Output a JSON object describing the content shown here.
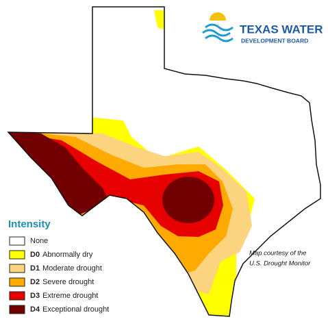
{
  "logo": {
    "title": "TEXAS WATER",
    "subtitle": "DEVELOPMENT BOARD"
  },
  "legend": {
    "title": "Intensity",
    "items": [
      {
        "label": "None",
        "color": "#ffffff"
      },
      {
        "code": "D0",
        "label": "Abnormally dry",
        "color": "#ffff00"
      },
      {
        "code": "D1",
        "label": "Moderate drought",
        "color": "#fcd37f"
      },
      {
        "code": "D2",
        "label": "Severe drought",
        "color": "#ffaa00"
      },
      {
        "code": "D3",
        "label": "Extreme drought",
        "color": "#e60000"
      },
      {
        "code": "D4",
        "label": "Exceptional drought",
        "color": "#730000"
      }
    ]
  },
  "credit": [
    "Map courtesy of the",
    "U.S. Drought Monitor"
  ]
}
